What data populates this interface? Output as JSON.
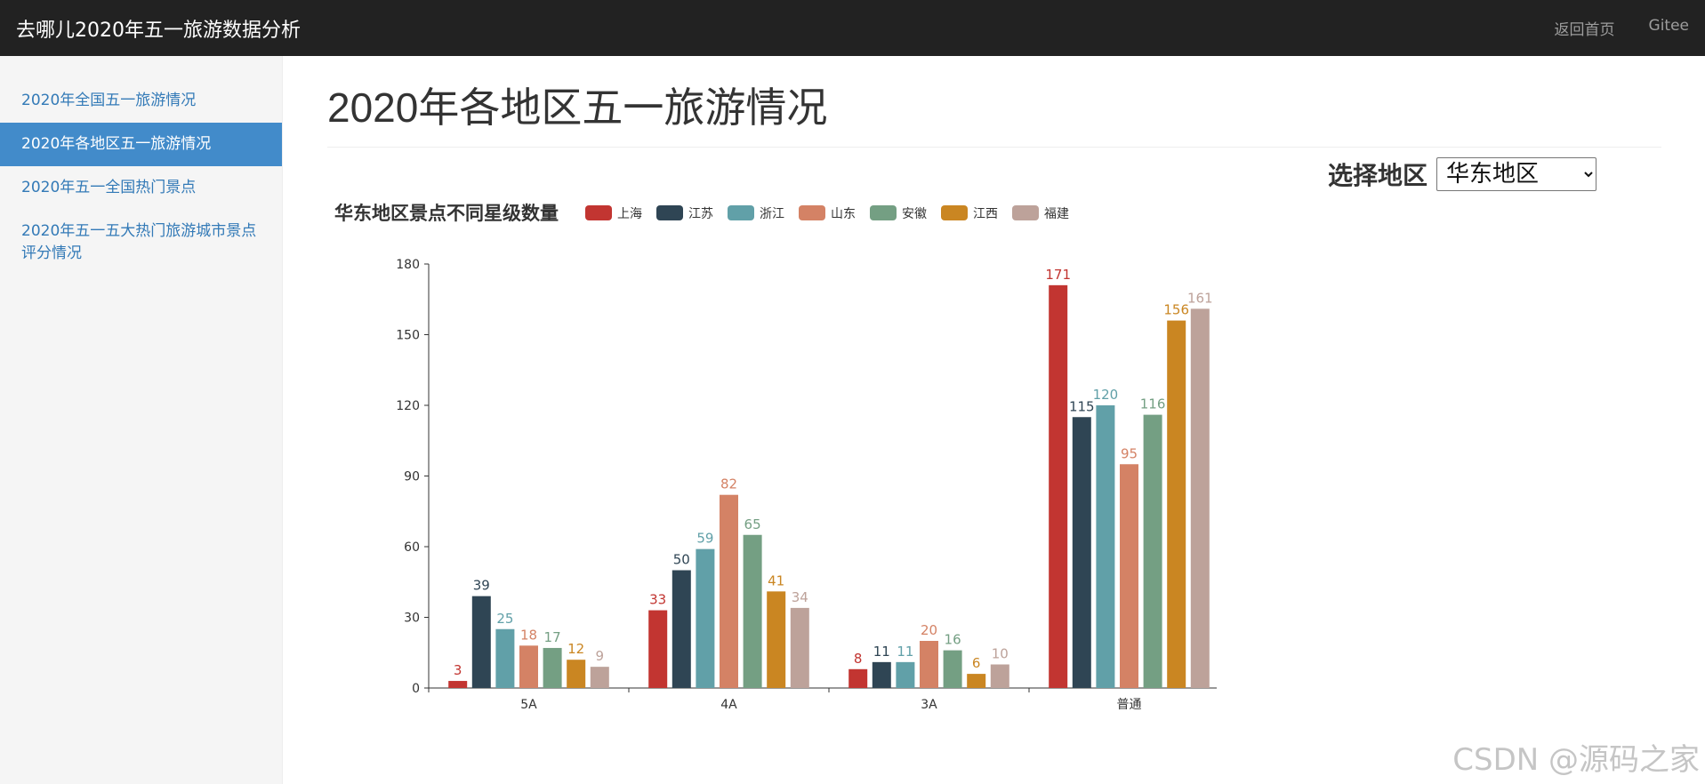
{
  "navbar": {
    "brand": "去哪儿2020年五一旅游数据分析",
    "links": [
      "返回首页",
      "Gitee"
    ]
  },
  "sidebar": {
    "items": [
      {
        "label": "2020年全国五一旅游情况"
      },
      {
        "label": "2020年各地区五一旅游情况"
      },
      {
        "label": "2020年五一全国热门景点"
      },
      {
        "label": "2020年五一五大热门旅游城市景点评分情况"
      }
    ]
  },
  "main": {
    "title": "2020年各地区五一旅游情况",
    "region_label": "选择地区",
    "region_selected": "华东地区"
  },
  "watermark": "CSDN @源码之家",
  "chart_data": {
    "type": "bar",
    "title": "华东地区景点不同星级数量",
    "categories": [
      "5A",
      "4A",
      "3A",
      "普通"
    ],
    "ylim": [
      0,
      180
    ],
    "yticks": [
      0,
      30,
      60,
      90,
      120,
      150,
      180
    ],
    "legend_position": "top",
    "colors": [
      "#c23531",
      "#2f4554",
      "#61a0a8",
      "#d48265",
      "#749f83",
      "#ca8622",
      "#bda29a"
    ],
    "series": [
      {
        "name": "上海",
        "values": [
          3,
          33,
          8,
          171
        ]
      },
      {
        "name": "江苏",
        "values": [
          39,
          50,
          11,
          115
        ]
      },
      {
        "name": "浙江",
        "values": [
          25,
          59,
          11,
          120
        ]
      },
      {
        "name": "山东",
        "values": [
          18,
          82,
          20,
          95
        ]
      },
      {
        "name": "安徽",
        "values": [
          17,
          65,
          16,
          116
        ]
      },
      {
        "name": "江西",
        "values": [
          12,
          41,
          6,
          156
        ]
      },
      {
        "name": "福建",
        "values": [
          9,
          34,
          10,
          161
        ]
      }
    ]
  }
}
